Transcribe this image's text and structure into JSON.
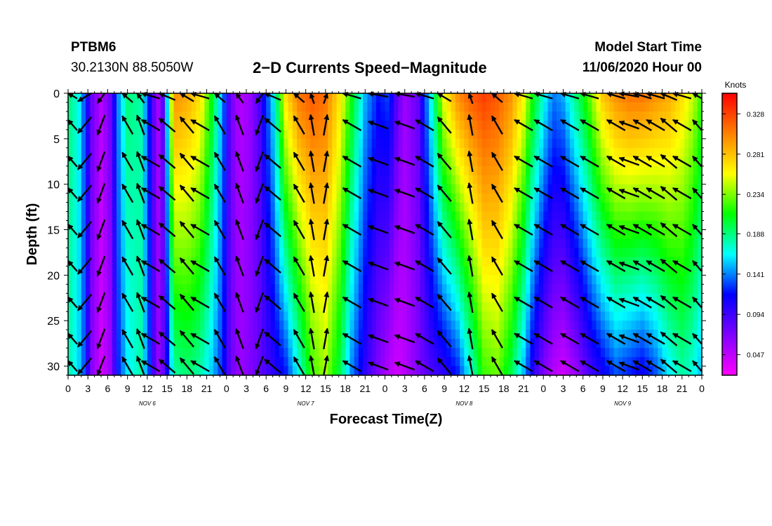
{
  "header": {
    "station": "PTBM6",
    "coords": "30.2130N 88.5050W",
    "title": "2−D Currents Speed−Magnitude",
    "model_start_label": "Model Start Time",
    "model_start_value": "11/06/2020 Hour 00"
  },
  "chart_data": {
    "type": "heatmap",
    "title": "2-D Currents Speed-Magnitude",
    "xlabel": "Forecast Time(Z)",
    "ylabel": "Depth (ft)",
    "x_tick_labels": [
      "0",
      "3",
      "6",
      "9",
      "12",
      "15",
      "18",
      "21",
      "0",
      "3",
      "6",
      "9",
      "12",
      "15",
      "18",
      "21",
      "0",
      "3",
      "6",
      "9",
      "12",
      "15",
      "18",
      "21",
      "0",
      "3",
      "6",
      "9",
      "12",
      "15",
      "18",
      "21",
      "0"
    ],
    "x_range_hours": [
      0,
      96
    ],
    "day_labels": [
      {
        "label": "NOV  6",
        "hour": 12
      },
      {
        "label": "NOV  7",
        "hour": 36
      },
      {
        "label": "NOV  8",
        "hour": 60
      },
      {
        "label": "NOV  9",
        "hour": 84
      }
    ],
    "y_tick_labels": [
      "0",
      "5",
      "10",
      "15",
      "20",
      "25",
      "30"
    ],
    "y_ticks": [
      0,
      5,
      10,
      15,
      20,
      25,
      30
    ],
    "y_range_ft": [
      0,
      31
    ],
    "y_inverted": true,
    "colorbar": {
      "unit": "Knots",
      "range": [
        0.023,
        0.352
      ],
      "tick_labels": [
        "0.328",
        "0.281",
        "0.234",
        "0.188",
        "0.141",
        "0.094",
        "0.047"
      ],
      "ticks": [
        0.328,
        0.281,
        0.234,
        0.188,
        0.141,
        0.094,
        0.047
      ],
      "colors": [
        "#ff00ff",
        "#8000ff",
        "#0000ff",
        "#00ffff",
        "#00ff00",
        "#ffff00",
        "#ff8000",
        "#ff0000"
      ]
    },
    "speed_profile_hours": [
      0,
      1.5,
      2.5,
      3.5,
      5,
      6.5,
      7.5,
      9,
      11,
      12.5,
      13.5,
      14.5,
      16,
      18,
      20,
      22,
      23.5,
      24.5,
      26,
      27.5,
      29,
      31,
      33,
      35,
      37,
      39,
      41,
      43,
      45,
      47,
      48.5,
      50,
      51,
      53,
      55,
      57,
      59,
      61,
      63,
      65,
      67,
      69,
      70.5,
      72,
      73.5,
      75,
      77,
      79,
      81,
      83,
      85,
      87,
      89,
      91,
      93,
      94.5,
      96
    ],
    "speed_surface": [
      0.19,
      0.17,
      0.13,
      0.08,
      0.05,
      0.08,
      0.14,
      0.19,
      0.18,
      0.11,
      0.05,
      0.09,
      0.3,
      0.29,
      0.27,
      0.2,
      0.14,
      0.08,
      0.05,
      0.06,
      0.09,
      0.16,
      0.27,
      0.31,
      0.32,
      0.31,
      0.27,
      0.21,
      0.15,
      0.12,
      0.13,
      0.08,
      0.06,
      0.08,
      0.17,
      0.26,
      0.3,
      0.32,
      0.33,
      0.32,
      0.3,
      0.26,
      0.21,
      0.17,
      0.14,
      0.15,
      0.19,
      0.23,
      0.28,
      0.3,
      0.31,
      0.31,
      0.3,
      0.29,
      0.27,
      0.25,
      0.22
    ],
    "speed_bottom": [
      0.18,
      0.16,
      0.13,
      0.07,
      0.04,
      0.06,
      0.12,
      0.16,
      0.18,
      0.12,
      0.06,
      0.08,
      0.18,
      0.19,
      0.18,
      0.15,
      0.12,
      0.08,
      0.06,
      0.07,
      0.08,
      0.1,
      0.12,
      0.17,
      0.22,
      0.24,
      0.2,
      0.14,
      0.1,
      0.07,
      0.05,
      0.04,
      0.05,
      0.07,
      0.09,
      0.1,
      0.12,
      0.17,
      0.22,
      0.23,
      0.2,
      0.15,
      0.1,
      0.07,
      0.05,
      0.04,
      0.06,
      0.09,
      0.11,
      0.13,
      0.12,
      0.11,
      0.13,
      0.16,
      0.18,
      0.17,
      0.15
    ],
    "vector_hours": [
      0,
      2.5,
      5,
      9,
      11,
      12.5,
      15,
      18,
      20,
      23,
      26,
      29,
      31,
      35,
      37,
      39,
      43,
      47,
      51,
      54,
      57,
      61,
      65,
      69,
      72,
      76,
      79,
      83,
      85,
      87,
      89,
      91,
      93,
      96
    ],
    "vector_depths_ft": [
      0,
      3.5,
      7.5,
      11,
      15,
      19,
      23,
      27,
      30
    ],
    "vector_directions_deg": [
      300,
      220,
      200,
      330,
      340,
      300,
      310,
      320,
      300,
      330,
      340,
      200,
      310,
      330,
      350,
      10,
      300,
      290,
      290,
      300,
      320,
      350,
      330,
      300,
      300,
      300,
      300,
      300,
      290,
      300,
      300,
      310,
      300,
      300
    ]
  }
}
